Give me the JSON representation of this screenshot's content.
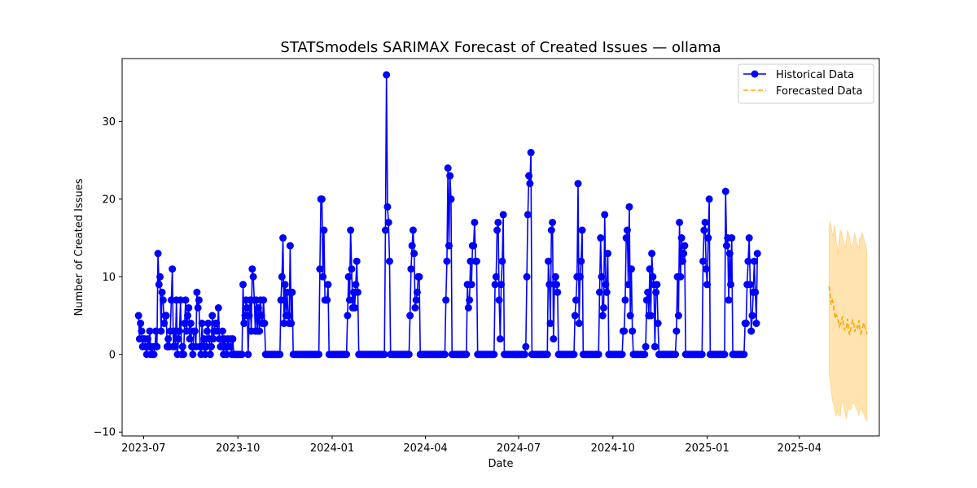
{
  "chart_data": {
    "type": "line",
    "title": "STATSmodels SARIMAX Forecast of Created Issues — ollama",
    "xlabel": "Date",
    "ylabel": "Number of Created Issues",
    "xlim": [
      "2023-06-10",
      "2025-06-18"
    ],
    "ylim": [
      -10.5,
      38.1
    ],
    "x_ticks": [
      "2023-07-01",
      "2023-10-01",
      "2024-01-01",
      "2024-04-01",
      "2024-07-01",
      "2024-10-01",
      "2025-01-01",
      "2025-04-01"
    ],
    "x_tick_labels": [
      "2023-07",
      "2023-10",
      "2024-01",
      "2024-04",
      "2024-07",
      "2024-10",
      "2025-01",
      "2025-04"
    ],
    "y_ticks": [
      -10,
      0,
      10,
      20,
      30
    ],
    "grid": false,
    "legend_position": "top-right",
    "series": [
      {
        "name": "Historical Data",
        "color": "#0000ff",
        "marker": "circle",
        "start_date": "2023-06-26",
        "values": [
          5,
          2,
          4,
          3,
          1,
          2,
          2,
          1,
          0,
          2,
          1,
          3,
          0,
          1,
          0,
          0,
          1,
          3,
          1,
          13,
          9,
          10,
          3,
          8,
          7,
          4,
          5,
          5,
          1,
          2,
          1,
          3,
          7,
          11,
          1,
          3,
          1,
          7,
          0,
          2,
          3,
          7,
          0,
          1,
          0,
          4,
          7,
          3,
          5,
          6,
          2,
          4,
          1,
          0,
          3,
          3,
          1,
          8,
          6,
          7,
          1,
          0,
          4,
          1,
          2,
          0,
          1,
          3,
          4,
          2,
          0,
          1,
          5,
          2,
          3,
          4,
          4,
          3,
          6,
          2,
          1,
          1,
          3,
          0,
          2,
          1,
          0,
          2,
          1,
          1,
          2,
          0,
          2,
          0,
          0,
          0,
          0,
          0,
          0,
          0,
          0,
          0,
          9,
          4,
          5,
          7,
          6,
          0,
          5,
          7,
          3,
          11,
          10,
          7,
          3,
          7,
          3,
          6,
          3,
          7,
          5,
          4,
          7,
          4,
          0,
          0,
          0,
          0,
          0,
          0,
          0,
          0,
          0,
          0,
          0,
          0,
          0,
          0,
          0,
          7,
          10,
          15,
          4,
          9,
          5,
          8,
          5,
          4,
          14,
          4,
          8,
          0,
          0,
          0,
          0,
          0,
          0,
          0,
          0,
          0,
          0,
          0,
          0,
          0,
          0,
          0,
          0,
          0,
          0,
          0,
          0,
          0,
          0,
          0,
          0,
          0,
          0,
          11,
          20,
          20,
          10,
          16,
          7,
          7,
          7,
          9,
          0,
          0,
          0,
          0,
          0,
          0,
          0,
          0,
          0,
          0,
          0,
          0,
          0,
          0,
          0,
          0,
          0,
          0,
          5,
          10,
          7,
          16,
          11,
          6,
          8,
          6,
          9,
          12,
          8,
          0,
          0,
          0,
          0,
          0,
          0,
          0,
          0,
          0,
          0,
          0,
          0,
          0,
          0,
          0,
          0,
          0,
          0,
          0,
          0,
          0,
          0,
          0,
          0,
          0,
          0,
          16,
          36,
          19,
          17,
          12,
          0,
          0,
          0,
          0,
          0,
          0,
          0,
          0,
          0,
          0,
          0,
          0,
          0,
          0,
          0,
          0,
          0,
          0,
          0,
          5,
          11,
          14,
          16,
          13,
          6,
          7,
          8,
          10,
          10,
          0,
          0,
          0,
          0,
          0,
          0,
          0,
          0,
          0,
          0,
          0,
          0,
          0,
          0,
          0,
          0,
          0,
          0,
          0,
          0,
          0,
          0,
          0,
          0,
          0,
          7,
          12,
          24,
          14,
          23,
          20,
          0,
          0,
          0,
          0,
          0,
          0,
          0,
          0,
          0,
          0,
          0,
          0,
          0,
          0,
          0,
          9,
          6,
          7,
          12,
          9,
          14,
          14,
          17,
          12,
          12,
          0,
          0,
          0,
          0,
          0,
          0,
          0,
          0,
          0,
          0,
          0,
          0,
          0,
          0,
          0,
          0,
          0,
          9,
          10,
          16,
          17,
          7,
          2,
          9,
          12,
          18,
          0,
          0,
          0,
          0,
          0,
          0,
          0,
          0,
          0,
          0,
          0,
          0,
          0,
          0,
          0,
          0,
          0,
          0,
          0,
          0,
          0,
          1,
          10,
          18,
          23,
          22,
          26,
          0,
          0,
          0,
          0,
          0,
          0,
          0,
          0,
          0,
          0,
          0,
          0,
          0,
          0,
          0,
          0,
          12,
          9,
          4,
          16,
          17,
          2,
          9,
          10,
          9,
          8,
          0,
          0,
          0,
          0,
          0,
          0,
          0,
          0,
          0,
          0,
          0,
          0,
          0,
          0,
          0,
          0,
          5,
          7,
          10,
          22,
          4,
          10,
          12,
          16,
          0,
          0,
          0,
          0,
          0,
          0,
          0,
          0,
          0,
          0,
          0,
          0,
          0,
          0,
          0,
          0,
          8,
          15,
          10,
          5,
          6,
          18,
          9,
          8,
          13,
          0,
          0,
          0,
          0,
          0,
          0,
          0,
          0,
          0,
          0,
          0,
          0,
          0,
          0,
          3,
          3,
          7,
          15,
          16,
          9,
          19,
          5,
          11,
          3,
          0,
          0,
          0,
          0,
          0,
          0,
          0,
          0,
          0,
          0,
          0,
          0,
          1,
          7,
          8,
          5,
          11,
          5,
          13,
          10,
          9,
          1,
          8,
          9,
          4,
          0,
          0,
          0,
          0,
          0,
          0,
          0,
          0,
          0,
          0,
          0,
          0,
          0,
          0,
          0,
          0,
          0,
          3,
          10,
          5,
          17,
          10,
          15,
          12,
          13,
          14,
          0,
          0,
          0,
          0,
          0,
          0,
          0,
          0,
          0,
          0,
          0,
          0,
          0,
          0,
          0,
          0,
          0,
          12,
          16,
          17,
          11,
          9,
          15,
          20,
          0,
          0,
          0,
          0,
          0,
          0,
          0,
          0,
          0,
          0,
          0,
          0,
          0,
          0,
          0,
          21,
          14,
          15,
          7,
          13,
          9,
          15,
          0,
          0,
          0,
          0,
          0,
          0,
          0,
          0,
          0,
          0,
          0,
          0,
          4,
          4,
          9,
          12,
          15,
          9,
          3,
          5,
          8,
          12,
          8,
          4,
          13
        ]
      },
      {
        "name": "Forecasted Data",
        "color": "#ffa500",
        "line_style": "dashed",
        "start_date": "2025-04-30",
        "values": [
          8.8,
          7.6,
          6.4,
          7.0,
          6.6,
          5.5,
          4.6,
          5.1,
          4.9,
          4.3,
          3.6,
          3.9,
          4.1,
          4.9,
          3.8,
          3.1,
          3.6,
          3.5,
          4.6,
          3.3,
          2.5,
          3.2,
          3.8,
          4.4,
          4.2,
          2.9,
          3.4,
          3.6,
          3.4,
          4.4,
          3.3,
          2.7,
          3.1,
          3.7,
          4.1,
          3.5,
          3.2,
          2.6
        ],
        "ci_lower": [
          -2.5,
          -3.4,
          -4.5,
          -5.8,
          -6.2,
          -6.8,
          -7.6,
          -8.0,
          -7.2,
          -7.6,
          -7.9,
          -8.0,
          -6.3,
          -6.0,
          -6.5,
          -7.3,
          -7.8,
          -8.3,
          -7.5,
          -7.0,
          -6.9,
          -7.2,
          -6.6,
          -6.1,
          -6.3,
          -6.5,
          -6.8,
          -7.0,
          -7.4,
          -7.8,
          -7.3,
          -6.9,
          -7.1,
          -7.6,
          -7.6,
          -8.1,
          -8.3,
          -8.5
        ],
        "ci_upper": [
          16.5,
          17.2,
          16.4,
          15.6,
          15.3,
          16.7,
          16.0,
          14.5,
          13.9,
          12.9,
          15.2,
          16.0,
          15.8,
          15.1,
          14.5,
          14.2,
          13.7,
          15.0,
          16.0,
          15.6,
          15.1,
          14.3,
          13.6,
          14.2,
          14.8,
          15.6,
          15.1,
          14.2,
          14.0,
          13.5,
          15.1,
          14.6,
          15.7,
          15.4,
          14.9,
          14.4,
          14.1,
          12.9
        ]
      }
    ]
  }
}
